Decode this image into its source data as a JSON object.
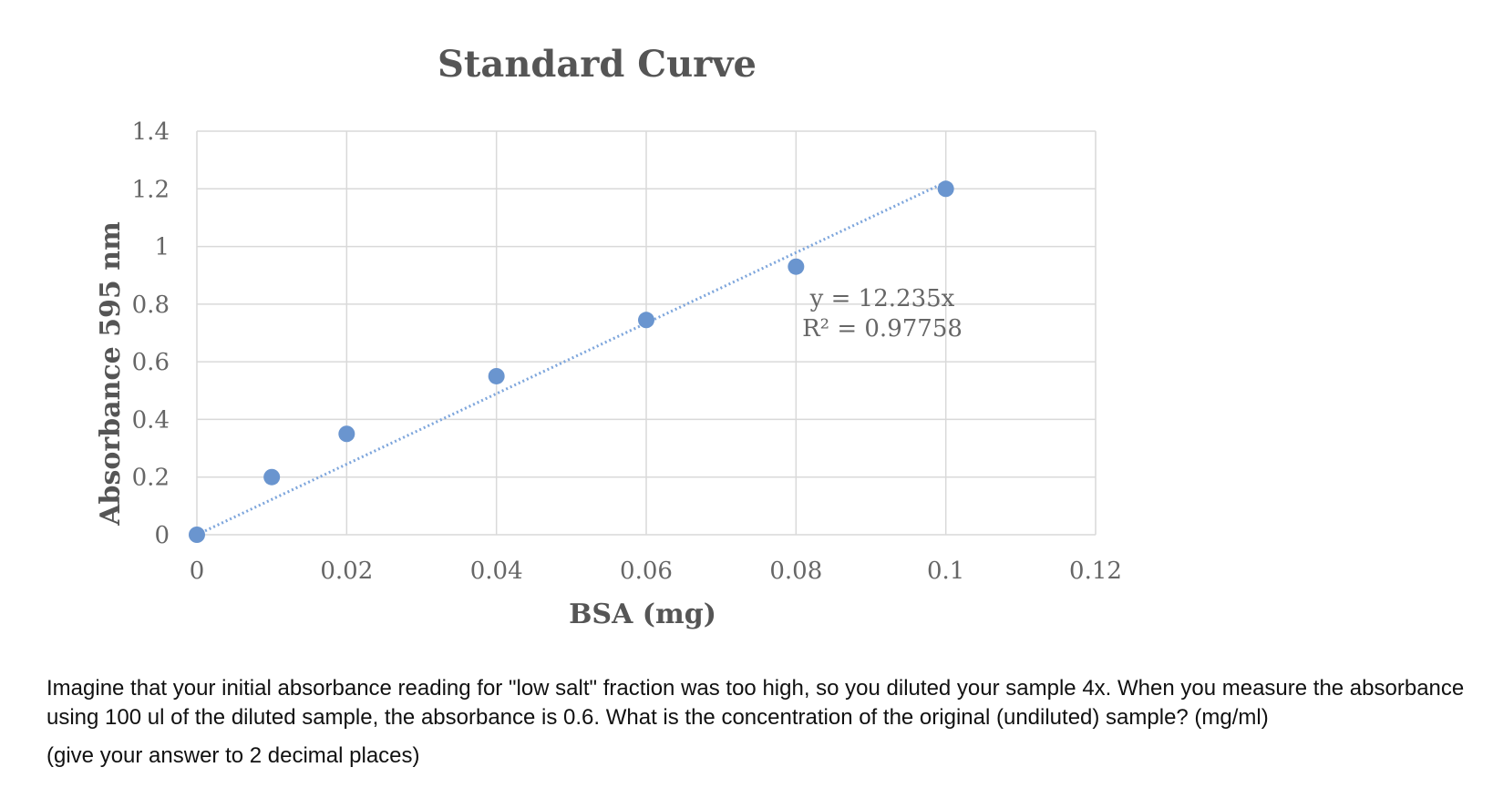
{
  "chart_data": {
    "type": "scatter",
    "title": "Standard Curve",
    "xlabel": "BSA (mg)",
    "ylabel": "Absorbance 595 nm",
    "xlim": [
      0,
      0.12
    ],
    "ylim": [
      0,
      1.4
    ],
    "xticks": [
      "0",
      "0.02",
      "0.04",
      "0.06",
      "0.08",
      "0.1",
      "0.12"
    ],
    "yticks": [
      "0",
      "0.2",
      "0.4",
      "0.6",
      "0.8",
      "1",
      "1.2",
      "1.4"
    ],
    "grid": true,
    "legend": "none",
    "marker_color": "#6a95cf",
    "trendline_color": "#7ea6dc",
    "series": [
      {
        "x": [
          0,
          0.01,
          0.02,
          0.04,
          0.06,
          0.08,
          0.1
        ],
        "y": [
          0,
          0.2,
          0.35,
          0.55,
          0.745,
          0.93,
          1.2
        ]
      }
    ],
    "trendline": {
      "type": "linear",
      "slope": 12.235,
      "x_range": [
        0,
        0.1
      ]
    },
    "annotations": [
      "y = 12.235x",
      "R² = 0.97758"
    ]
  },
  "question": {
    "text": "Imagine that your initial absorbance reading for \"low salt\" fraction was too high, so you diluted your sample 4x.  When you measure the absorbance using 100 ul of the diluted sample, the absorbance is 0.6.  What is the concentration of the original (undiluted) sample? (mg/ml)",
    "note": "(give your answer to 2 decimal places)"
  }
}
